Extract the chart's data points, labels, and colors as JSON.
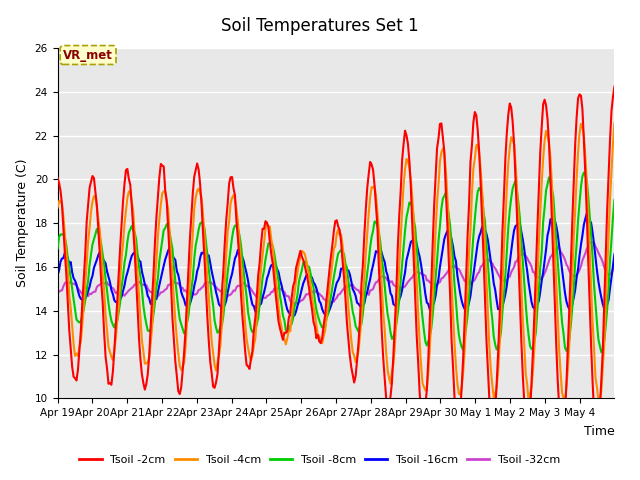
{
  "title": "Soil Temperatures Set 1",
  "xlabel": "Time",
  "ylabel": "Soil Temperature (C)",
  "ylim": [
    10,
    26
  ],
  "yticks": [
    10,
    12,
    14,
    16,
    18,
    20,
    22,
    24,
    26
  ],
  "background_color": "#e8e8e8",
  "fig_background": "#ffffff",
  "grid_color": "#ffffff",
  "annotation_text": "VR_met",
  "annotation_color": "#8b0000",
  "annotation_bg": "#ffffcc",
  "annotation_border": "#aaa000",
  "colors": {
    "2cm": "#ff0000",
    "4cm": "#ff8c00",
    "8cm": "#00cc00",
    "16cm": "#0000ff",
    "32cm": "#cc44cc"
  },
  "legend_labels": [
    "Tsoil -2cm",
    "Tsoil -4cm",
    "Tsoil -8cm",
    "Tsoil -16cm",
    "Tsoil -32cm"
  ],
  "xtick_labels": [
    "Apr 19",
    "Apr 20",
    "Apr 21",
    "Apr 22",
    "Apr 23",
    "Apr 24",
    "Apr 25",
    "Apr 26",
    "Apr 27",
    "Apr 28",
    "Apr 29",
    "Apr 30",
    "May 1",
    "May 2",
    "May 3",
    "May 4"
  ],
  "line_width": 1.5,
  "title_fontsize": 12,
  "label_fontsize": 9,
  "tick_fontsize": 7.5
}
